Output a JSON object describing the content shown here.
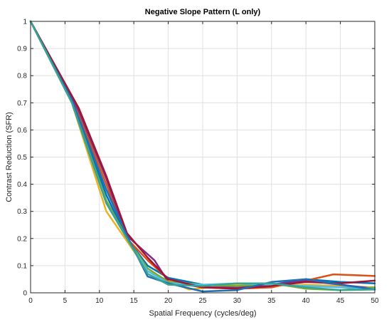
{
  "chart_data": {
    "type": "line",
    "title": "Negative Slope Pattern (L only)",
    "xlabel": "Spatial Frequency (cycles/deg)",
    "ylabel": "Contrast Reduction (SFR)",
    "xlim": [
      0,
      50
    ],
    "ylim": [
      0,
      1
    ],
    "xticks": [
      0,
      5,
      10,
      15,
      20,
      25,
      30,
      35,
      40,
      45,
      50
    ],
    "yticks": [
      0,
      0.1,
      0.2,
      0.3,
      0.4,
      0.5,
      0.6,
      0.7,
      0.8,
      0.9,
      1
    ],
    "grid": true,
    "legend": "none",
    "colors": {
      "axes": "#262626",
      "grid": "#e0e0e0",
      "background": "#ffffff"
    },
    "series": [
      {
        "color": "#0072BD",
        "x": [
          0,
          6,
          11,
          14,
          17,
          20,
          25,
          30,
          35,
          40,
          45,
          50
        ],
        "y": [
          1.0,
          0.71,
          0.36,
          0.2,
          0.1,
          0.055,
          0.03,
          0.025,
          0.03,
          0.05,
          0.04,
          0.035
        ]
      },
      {
        "color": "#D95319",
        "x": [
          0,
          6,
          11,
          14,
          17,
          20,
          25,
          30,
          35,
          40,
          44,
          50
        ],
        "y": [
          1.0,
          0.72,
          0.4,
          0.2,
          0.12,
          0.05,
          0.02,
          0.015,
          0.02,
          0.045,
          0.068,
          0.062
        ]
      },
      {
        "color": "#EDB120",
        "x": [
          0,
          6,
          11,
          14,
          17,
          20,
          23,
          30,
          35,
          40,
          45,
          50
        ],
        "y": [
          1.0,
          0.7,
          0.3,
          0.19,
          0.08,
          0.045,
          0.012,
          0.03,
          0.025,
          0.03,
          0.025,
          0.02
        ]
      },
      {
        "color": "#7E2F8E",
        "x": [
          0,
          7,
          11,
          14,
          18,
          20,
          25,
          30,
          35,
          40,
          45,
          50
        ],
        "y": [
          1.0,
          0.67,
          0.42,
          0.21,
          0.12,
          0.04,
          0.02,
          0.02,
          0.03,
          0.045,
          0.03,
          0.015
        ]
      },
      {
        "color": "#77AC30",
        "x": [
          0,
          6,
          11,
          14,
          17,
          20,
          25,
          30,
          35,
          40,
          45,
          50
        ],
        "y": [
          1.0,
          0.7,
          0.34,
          0.2,
          0.09,
          0.04,
          0.03,
          0.025,
          0.035,
          0.015,
          0.01,
          0.02
        ]
      },
      {
        "color": "#4DBEEE",
        "x": [
          0,
          6,
          11,
          14,
          17,
          20,
          25,
          30,
          35,
          40,
          45,
          50
        ],
        "y": [
          1.0,
          0.7,
          0.33,
          0.2,
          0.08,
          0.035,
          0.03,
          0.035,
          0.03,
          0.025,
          0.02,
          0.015
        ]
      },
      {
        "color": "#A2142F",
        "x": [
          0,
          7,
          11,
          14,
          17,
          20,
          25,
          30,
          35,
          40,
          45,
          50
        ],
        "y": [
          1.0,
          0.68,
          0.43,
          0.22,
          0.13,
          0.05,
          0.02,
          0.015,
          0.025,
          0.04,
          0.035,
          0.045
        ]
      },
      {
        "color": "#1f6fb5",
        "x": [
          0,
          6,
          11,
          14,
          17,
          20,
          25,
          30,
          35,
          40,
          45,
          50
        ],
        "y": [
          1.0,
          0.71,
          0.38,
          0.21,
          0.06,
          0.035,
          0.005,
          0.01,
          0.04,
          0.05,
          0.03,
          0.012
        ]
      },
      {
        "color": "#3aa38f",
        "x": [
          0,
          6,
          11,
          14,
          17,
          20,
          25,
          30,
          35,
          40,
          45,
          50
        ],
        "y": [
          1.0,
          0.7,
          0.33,
          0.2,
          0.07,
          0.03,
          0.025,
          0.035,
          0.035,
          0.02,
          0.01,
          0.012
        ]
      }
    ]
  }
}
